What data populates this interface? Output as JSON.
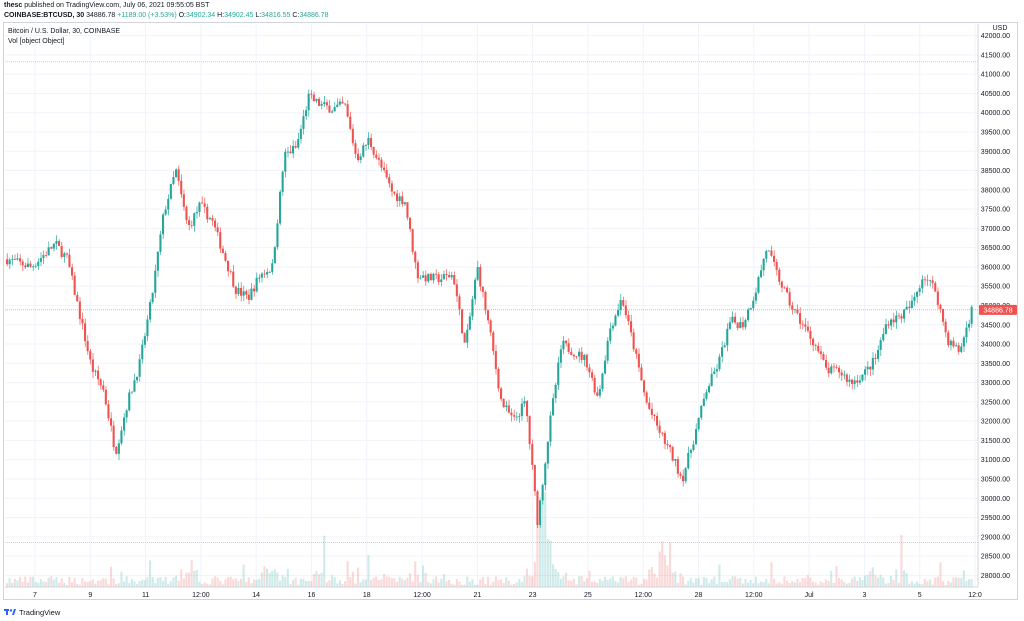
{
  "header": {
    "user": "thesc",
    "published": "published on TradingView.com, July 06, 2021 09:55:05 BST",
    "symbol": "COINBASE:BTCUSD, 30",
    "last": "34886.78",
    "change": "+1189.00 (+3.53%)",
    "o_label": "O:",
    "o": "34902.34",
    "h_label": "H:",
    "h": "34902.45",
    "l_label": "L:",
    "l": "34816.55",
    "c_label": "C:",
    "c": "34886.78"
  },
  "legend": {
    "title": "Bitcoin / U.S. Dollar, 30, COINBASE",
    "vol": "Vol [object Object]"
  },
  "footer": {
    "brand": "TradingView"
  },
  "colors": {
    "up": "#26a69a",
    "down": "#ef5350",
    "grid": "#f0f3fa",
    "axis": "#131722"
  },
  "chart_data": {
    "type": "candlestick",
    "currency": "USD",
    "last_price": 34886.78,
    "ylim": [
      27700,
      42300
    ],
    "y_ticks": [
      28000,
      28500,
      29000,
      29500,
      30000,
      30500,
      31000,
      31500,
      32000,
      32500,
      33000,
      33500,
      34000,
      34500,
      35000,
      35500,
      36000,
      36500,
      37000,
      37500,
      38000,
      38500,
      39000,
      39500,
      40000,
      40500,
      41000,
      41500,
      42000
    ],
    "x_tick_labels": [
      "7",
      "9",
      "11",
      "12:00",
      "14",
      "16",
      "18",
      "12:00",
      "21",
      "23",
      "25",
      "12:00",
      "28",
      "12:00",
      "Jul",
      "3",
      "5",
      "12:0"
    ],
    "price_path": [
      [
        0,
        36200
      ],
      [
        2,
        36000
      ],
      [
        4,
        36600
      ],
      [
        5,
        36200
      ],
      [
        7,
        33400
      ],
      [
        8,
        32800
      ],
      [
        9,
        31200
      ],
      [
        10,
        32500
      ],
      [
        11,
        33500
      ],
      [
        12,
        35200
      ],
      [
        13,
        37400
      ],
      [
        14,
        38500
      ],
      [
        15,
        37000
      ],
      [
        16,
        37600
      ],
      [
        17,
        37200
      ],
      [
        18,
        36300
      ],
      [
        19,
        35400
      ],
      [
        20,
        35200
      ],
      [
        21,
        35800
      ],
      [
        22,
        36000
      ],
      [
        23,
        38900
      ],
      [
        24,
        39100
      ],
      [
        25,
        40400
      ],
      [
        26,
        40200
      ],
      [
        27,
        40100
      ],
      [
        28,
        40200
      ],
      [
        29,
        38800
      ],
      [
        30,
        39300
      ],
      [
        31,
        38600
      ],
      [
        32,
        37900
      ],
      [
        33,
        37700
      ],
      [
        34,
        35800
      ],
      [
        35,
        35700
      ],
      [
        36,
        35700
      ],
      [
        37,
        35800
      ],
      [
        38,
        33900
      ],
      [
        39,
        36000
      ],
      [
        40,
        34400
      ],
      [
        41,
        32500
      ],
      [
        42,
        32000
      ],
      [
        43,
        32500
      ],
      [
        44,
        29400
      ],
      [
        45,
        31900
      ],
      [
        46,
        34000
      ],
      [
        47,
        33800
      ],
      [
        48,
        33600
      ],
      [
        49,
        32600
      ],
      [
        50,
        34400
      ],
      [
        51,
        35200
      ],
      [
        52,
        33900
      ],
      [
        53,
        32500
      ],
      [
        54,
        31800
      ],
      [
        55,
        31200
      ],
      [
        56,
        30500
      ],
      [
        57,
        31600
      ],
      [
        58,
        32800
      ],
      [
        59,
        33500
      ],
      [
        60,
        34600
      ],
      [
        61,
        34500
      ],
      [
        62,
        35300
      ],
      [
        63,
        36500
      ],
      [
        64,
        35700
      ],
      [
        65,
        35000
      ],
      [
        66,
        34500
      ],
      [
        67,
        34000
      ],
      [
        68,
        33300
      ],
      [
        69,
        33300
      ],
      [
        70,
        33000
      ],
      [
        71,
        33200
      ],
      [
        72,
        33600
      ],
      [
        73,
        34600
      ],
      [
        74,
        34700
      ],
      [
        75,
        35000
      ],
      [
        76,
        35800
      ],
      [
        77,
        35400
      ],
      [
        78,
        34100
      ],
      [
        79,
        33800
      ],
      [
        80,
        34886
      ]
    ],
    "volume_peaks": [
      [
        15,
        2.2
      ],
      [
        22,
        1.8
      ],
      [
        26,
        1.3
      ],
      [
        30,
        2.5
      ],
      [
        34,
        1.5
      ],
      [
        44,
        3.5
      ],
      [
        45,
        2.6
      ],
      [
        54,
        1.6
      ],
      [
        55,
        1.8
      ],
      [
        72,
        1.1
      ],
      [
        74,
        0.9
      ]
    ],
    "dotted_levels": [
      41320,
      28850
    ]
  }
}
